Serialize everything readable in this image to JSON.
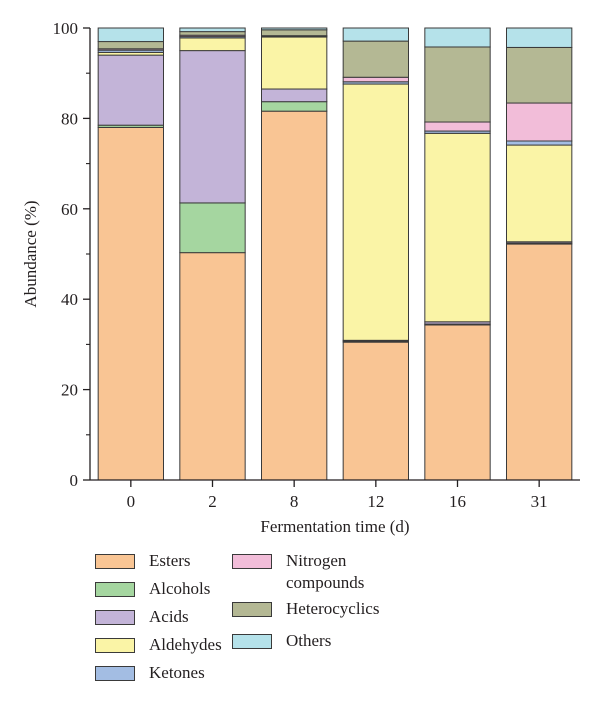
{
  "chart_data": {
    "type": "bar",
    "stacked": true,
    "title": "",
    "xlabel": "Fermentation time (d)",
    "ylabel": "Abundance (%)",
    "ylim": [
      0,
      100
    ],
    "yticks": [
      0,
      20,
      40,
      60,
      80,
      100
    ],
    "categories": [
      "0",
      "2",
      "8",
      "12",
      "16",
      "31"
    ],
    "legend_position": "bottom",
    "series": [
      {
        "name": "Esters",
        "color": "#f9c594",
        "values": [
          78.0,
          50.3,
          81.6,
          30.5,
          34.3,
          52.2
        ]
      },
      {
        "name": "Alcohols",
        "color": "#a5d6a0",
        "values": [
          0.5,
          11.0,
          2.1,
          0.2,
          0.2,
          0.2
        ]
      },
      {
        "name": "Acids",
        "color": "#c3b4d8",
        "values": [
          15.5,
          33.7,
          2.8,
          0.2,
          0.5,
          0.3
        ]
      },
      {
        "name": "Aldehydes",
        "color": "#faf4a6",
        "values": [
          0.6,
          2.8,
          11.5,
          56.7,
          41.7,
          21.4
        ]
      },
      {
        "name": "Ketones",
        "color": "#a3bde3",
        "values": [
          0.5,
          0.3,
          0.2,
          0.5,
          0.5,
          0.9
        ]
      },
      {
        "name": "Nitrogen\ncompounds",
        "color": "#f2bdd9",
        "values": [
          0.3,
          0.3,
          0.1,
          1.0,
          2.0,
          8.4
        ]
      },
      {
        "name": "Heterocyclics",
        "color": "#b4b894",
        "values": [
          1.6,
          0.8,
          1.3,
          8.0,
          16.6,
          12.3
        ]
      },
      {
        "name": "Others",
        "color": "#b5e2ea",
        "values": [
          3.0,
          0.8,
          0.4,
          2.9,
          4.2,
          4.3
        ]
      }
    ]
  }
}
